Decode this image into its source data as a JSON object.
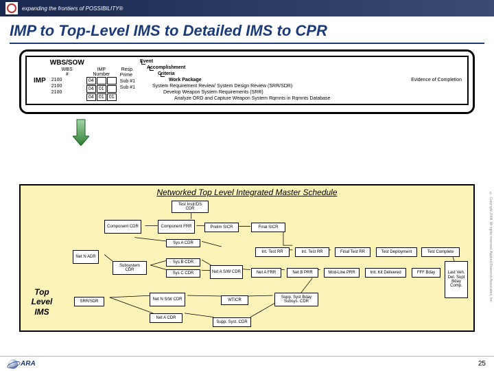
{
  "banner": {
    "tagline": "expanding the frontiers of POSSIBILITY®"
  },
  "title": "IMP to Top-Level IMS to Detailed IMS to CPR",
  "imp": {
    "side_label": "IMP",
    "wbs_sow": "WBS/SOW",
    "headers": {
      "wbs": "WBS\n#",
      "impnum": "IMP\nNumber",
      "resp": "Resp."
    },
    "rows": [
      {
        "wbs": "2100",
        "n1": "04",
        "n2": "",
        "n3": "",
        "resp": "Prime"
      },
      {
        "wbs": "2100",
        "n1": "04",
        "n2": "01",
        "n3": "",
        "resp": "Sub #1"
      },
      {
        "wbs": "2100",
        "n1": "04",
        "n2": "01",
        "n3": "01",
        "resp": "Sub #1"
      }
    ],
    "hier": {
      "l1": "Event",
      "l2": "Accomplishment",
      "l3": "Criteria",
      "l4": "Work Package",
      "l5": "System Requirement Review/ System Design Review (SRR/SDR)",
      "l6": "Develop Weapon System Requirements (SRR)",
      "l7": "Analyze ORD and Capture Weapon System Rqmnts in Rqmnts Database",
      "evidence": "Evidence of Completion"
    }
  },
  "ims": {
    "title": "Networked Top Level Integrated Master Schedule",
    "side_label": "Top\nLevel\nIMS",
    "nodes": {
      "n01": "Test Instr/DS\nCDR",
      "n02": "Component\nCDR",
      "n03": "Component\nFRR",
      "n04": "Prelim SICR",
      "n05": "Final SICR",
      "n06": "Sys A CDR",
      "n07": "Net N\nADR",
      "n08": "Int. Test RR",
      "n09": "Int. Test RR",
      "n10": "Final Test RR",
      "n11": "Test Deployment",
      "n12": "Test Complete",
      "n13": "Subsystem\nCDR",
      "n14": "Sys B CDR",
      "n15": "Sys C CDR",
      "n16": "Net A S/W\nCDR",
      "n17": "Net A FRR",
      "n18": "Net B PRR",
      "n19": "Mod-Line PRR",
      "n20": "Init. Kit Delivered",
      "n21": "FFF Bday",
      "n22": "SRR/SDR",
      "n23": "Net N S/W\nCDR",
      "n24": "WTICR",
      "n25": "Supp. Syst Bday\nSubsys. CDR",
      "n26": "Net A CDR",
      "n27": "Supp. Syst. CDR",
      "n28": "Last\nVeh.\nDel.\nSupt\nBday\nComp."
    },
    "positions": {
      "n01": [
        160,
        2,
        54,
        18
      ],
      "n02": [
        62,
        30,
        54,
        20
      ],
      "n03": [
        140,
        30,
        54,
        20
      ],
      "n04": [
        208,
        34,
        50,
        14
      ],
      "n05": [
        276,
        34,
        50,
        14
      ],
      "n06": [
        152,
        58,
        50,
        12
      ],
      "n07": [
        16,
        74,
        38,
        20
      ],
      "n08": [
        282,
        70,
        50,
        14
      ],
      "n09": [
        340,
        70,
        50,
        14
      ],
      "n10": [
        398,
        70,
        52,
        14
      ],
      "n11": [
        458,
        70,
        60,
        14
      ],
      "n12": [
        524,
        70,
        56,
        14
      ],
      "n13": [
        74,
        90,
        50,
        20
      ],
      "n14": [
        152,
        86,
        50,
        12
      ],
      "n15": [
        152,
        102,
        50,
        12
      ],
      "n16": [
        216,
        96,
        48,
        20
      ],
      "n17": [
        276,
        100,
        44,
        14
      ],
      "n18": [
        328,
        100,
        46,
        14
      ],
      "n19": [
        382,
        100,
        52,
        14
      ],
      "n20": [
        442,
        100,
        60,
        14
      ],
      "n21": [
        510,
        100,
        42,
        14
      ],
      "n22": [
        18,
        142,
        44,
        14
      ],
      "n23": [
        128,
        136,
        52,
        20
      ],
      "n24": [
        232,
        140,
        40,
        14
      ],
      "n25": [
        310,
        136,
        64,
        20
      ],
      "n26": [
        128,
        166,
        48,
        14
      ],
      "n27": [
        220,
        172,
        56,
        14
      ],
      "n28": [
        558,
        90,
        34,
        54
      ]
    },
    "edges": [
      [
        186,
        20,
        186,
        30
      ],
      [
        116,
        40,
        140,
        40
      ],
      [
        194,
        40,
        208,
        40
      ],
      [
        258,
        41,
        276,
        41
      ],
      [
        326,
        41,
        326,
        70,
        340,
        70
      ],
      [
        54,
        84,
        74,
        100
      ],
      [
        100,
        58,
        152,
        64
      ],
      [
        124,
        100,
        152,
        92
      ],
      [
        124,
        100,
        152,
        108
      ],
      [
        202,
        64,
        232,
        72
      ],
      [
        202,
        92,
        216,
        100
      ],
      [
        202,
        108,
        216,
        108
      ],
      [
        264,
        106,
        276,
        107
      ],
      [
        320,
        107,
        328,
        107
      ],
      [
        374,
        107,
        382,
        107
      ],
      [
        434,
        107,
        442,
        107
      ],
      [
        502,
        107,
        510,
        107
      ],
      [
        332,
        77,
        340,
        77
      ],
      [
        390,
        77,
        398,
        77
      ],
      [
        450,
        77,
        458,
        77
      ],
      [
        518,
        77,
        524,
        77
      ],
      [
        62,
        149,
        128,
        146
      ],
      [
        62,
        149,
        128,
        173
      ],
      [
        180,
        146,
        232,
        147
      ],
      [
        272,
        147,
        310,
        146
      ],
      [
        176,
        173,
        220,
        179
      ],
      [
        276,
        179,
        316,
        156
      ],
      [
        552,
        107,
        558,
        110
      ],
      [
        580,
        77,
        588,
        100
      ],
      [
        342,
        156,
        370,
        120
      ]
    ]
  },
  "footer": {
    "logo": "ARA",
    "page": "25"
  },
  "copyright": "© Copyright 2008. All rights reserved. Applied Research Associates, Inc."
}
